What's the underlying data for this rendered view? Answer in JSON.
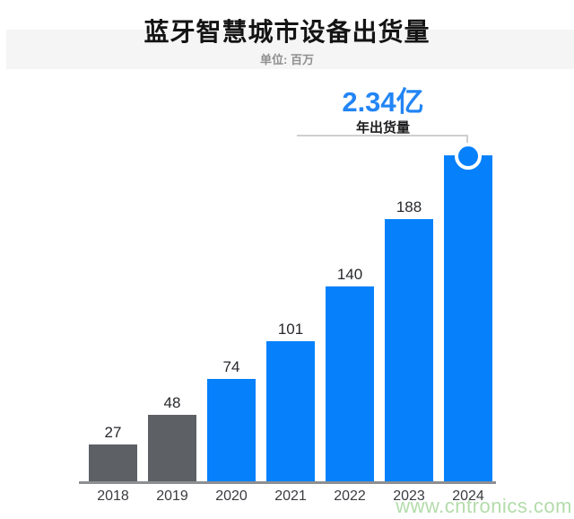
{
  "header": {
    "title": "蓝牙智慧城市设备出货量",
    "subtitle": "单位: 百万"
  },
  "callout": {
    "value": "2.34亿",
    "label": "年出货量",
    "applies_to": "2024"
  },
  "watermark": "www.cntronics.com",
  "chart_data": {
    "type": "bar",
    "title": "蓝牙智慧城市设备出货量",
    "subtitle": "单位: 百万",
    "unit": "百万 (million)",
    "categories": [
      "2018",
      "2019",
      "2020",
      "2021",
      "2022",
      "2023",
      "2024"
    ],
    "values": [
      27,
      48,
      74,
      101,
      140,
      188,
      234
    ],
    "bar_value_labels": [
      "27",
      "48",
      "74",
      "101",
      "140",
      "188",
      ""
    ],
    "callout_value": "2.34亿",
    "callout_label": "年出货量",
    "highlighted_category": "2024",
    "gray_bar_count": 2,
    "ylim": [
      0,
      250
    ],
    "grid": false,
    "legend": "none",
    "colors": {
      "bar_past": "#5d6064",
      "bar_highlight": "#0681fb",
      "callout_text": "#2285f5",
      "axis_line": "#8d8f93",
      "connector": "#cfcfcf",
      "watermark": "#b3dcaa",
      "title_text": "#141414",
      "subtitle_text": "#8f8f90"
    }
  }
}
